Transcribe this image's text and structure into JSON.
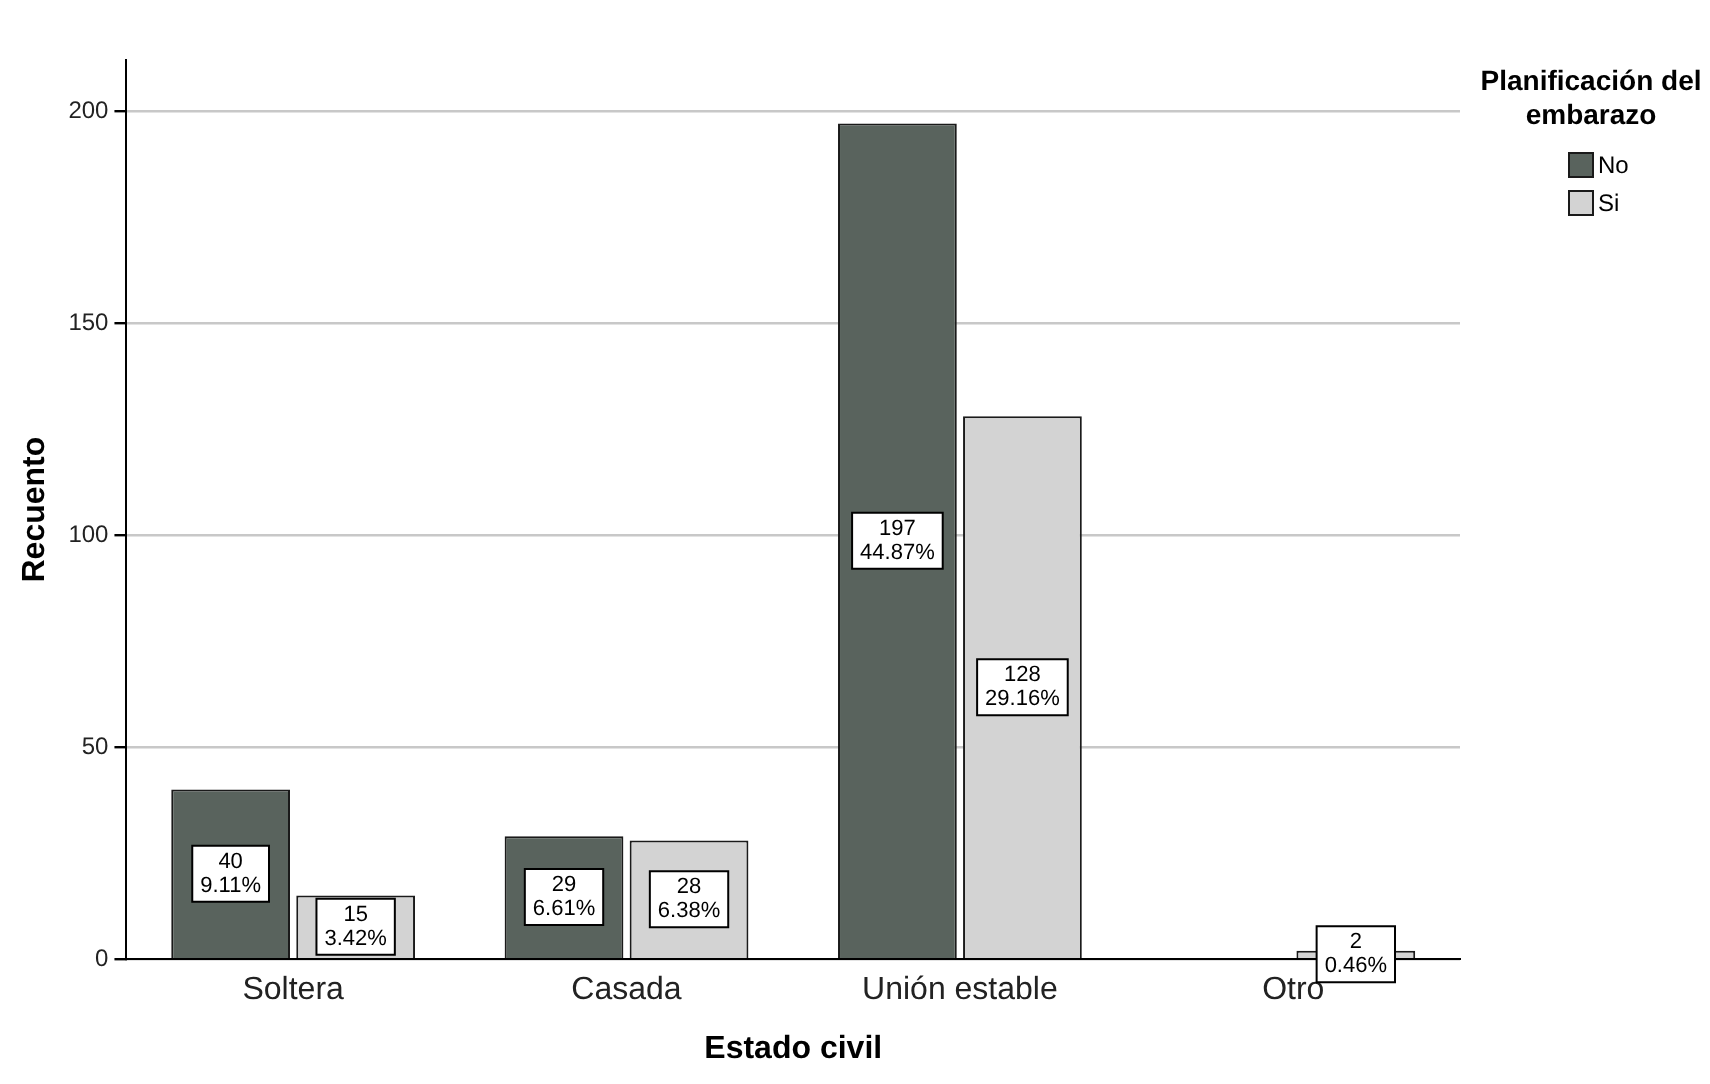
{
  "chart_data": {
    "type": "bar",
    "xlabel": "Estado civil",
    "ylabel": "Recuento",
    "legend_title": "Planificación del embarazo",
    "categories": [
      "Soltera",
      "Casada",
      "Unión estable",
      "Otro"
    ],
    "series": [
      {
        "name": "No",
        "color": "#59635d",
        "values": [
          40,
          29,
          197,
          null
        ],
        "value_labels": [
          "40\n9.11%",
          "29\n6.61%",
          "197\n44.87%",
          null
        ]
      },
      {
        "name": "Si",
        "color": "#d3d3d3",
        "values": [
          15,
          28,
          128,
          2
        ],
        "value_labels": [
          "15\n3.42%",
          "28\n6.38%",
          "128\n29.16%",
          "2\n0.46%"
        ]
      }
    ],
    "ylim": [
      0,
      212
    ],
    "yticks": [
      0,
      50,
      100,
      150,
      200
    ],
    "grid": "y",
    "legend": "top right"
  }
}
